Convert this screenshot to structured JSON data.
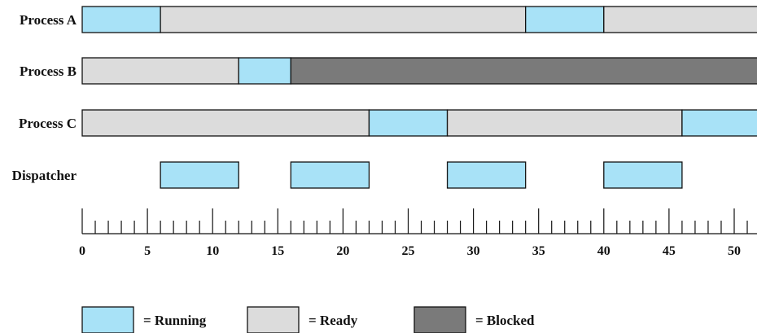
{
  "states": {
    "running": {
      "label": "= Running",
      "color": "#a8e2f7"
    },
    "ready": {
      "label": "= Ready",
      "color": "#dcdcdc"
    },
    "blocked": {
      "label": "= Blocked",
      "color": "#7a7a7a"
    }
  },
  "rows": [
    {
      "label": "Process A",
      "segments": [
        {
          "start": 0,
          "end": 6,
          "state": "running"
        },
        {
          "start": 6,
          "end": 34,
          "state": "ready"
        },
        {
          "start": 34,
          "end": 40,
          "state": "running"
        },
        {
          "start": 40,
          "end": 52,
          "state": "ready"
        }
      ]
    },
    {
      "label": "Process B",
      "segments": [
        {
          "start": 0,
          "end": 12,
          "state": "ready"
        },
        {
          "start": 12,
          "end": 16,
          "state": "running"
        },
        {
          "start": 16,
          "end": 52,
          "state": "blocked"
        }
      ]
    },
    {
      "label": "Process C",
      "segments": [
        {
          "start": 0,
          "end": 22,
          "state": "ready"
        },
        {
          "start": 22,
          "end": 28,
          "state": "running"
        },
        {
          "start": 28,
          "end": 46,
          "state": "ready"
        },
        {
          "start": 46,
          "end": 52,
          "state": "running"
        }
      ]
    },
    {
      "label": "Dispatcher",
      "segments": [
        {
          "start": 6,
          "end": 12,
          "state": "running"
        },
        {
          "start": 16,
          "end": 22,
          "state": "running"
        },
        {
          "start": 28,
          "end": 34,
          "state": "running"
        },
        {
          "start": 40,
          "end": 46,
          "state": "running"
        }
      ]
    }
  ],
  "axis": {
    "min": 0,
    "max": 52,
    "major_step": 5,
    "minor_step": 1,
    "tick_labels": [
      "0",
      "5",
      "10",
      "15",
      "20",
      "25",
      "30",
      "35",
      "40",
      "45",
      "50"
    ]
  },
  "legend": [
    "running",
    "ready",
    "blocked"
  ]
}
